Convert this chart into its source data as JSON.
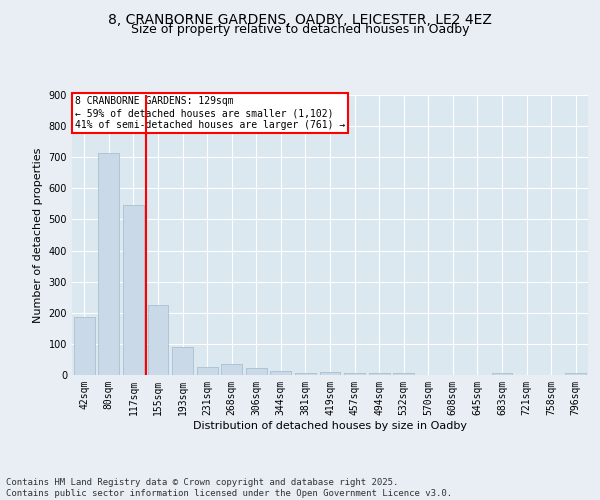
{
  "title_line1": "8, CRANBORNE GARDENS, OADBY, LEICESTER, LE2 4EZ",
  "title_line2": "Size of property relative to detached houses in Oadby",
  "xlabel": "Distribution of detached houses by size in Oadby",
  "ylabel": "Number of detached properties",
  "categories": [
    "42sqm",
    "80sqm",
    "117sqm",
    "155sqm",
    "193sqm",
    "231sqm",
    "268sqm",
    "306sqm",
    "344sqm",
    "381sqm",
    "419sqm",
    "457sqm",
    "494sqm",
    "532sqm",
    "570sqm",
    "608sqm",
    "645sqm",
    "683sqm",
    "721sqm",
    "758sqm",
    "796sqm"
  ],
  "values": [
    185,
    715,
    545,
    225,
    90,
    27,
    35,
    22,
    13,
    8,
    10,
    5,
    7,
    5,
    0,
    0,
    0,
    5,
    0,
    0,
    5
  ],
  "bar_color": "#c9d9e8",
  "bar_edge_color": "#a0b8cc",
  "redline_index": 2.5,
  "annotation_line1": "8 CRANBORNE GARDENS: 129sqm",
  "annotation_line2": "← 59% of detached houses are smaller (1,102)",
  "annotation_line3": "41% of semi-detached houses are larger (761) →",
  "ylim": [
    0,
    900
  ],
  "yticks": [
    0,
    100,
    200,
    300,
    400,
    500,
    600,
    700,
    800,
    900
  ],
  "bg_color": "#e8eef4",
  "plot_bg_color": "#dce8f0",
  "grid_color": "#ffffff",
  "footer_line1": "Contains HM Land Registry data © Crown copyright and database right 2025.",
  "footer_line2": "Contains public sector information licensed under the Open Government Licence v3.0.",
  "title_fontsize": 10,
  "subtitle_fontsize": 9,
  "axis_label_fontsize": 8,
  "tick_fontsize": 7,
  "annotation_fontsize": 7,
  "footer_fontsize": 6.5
}
